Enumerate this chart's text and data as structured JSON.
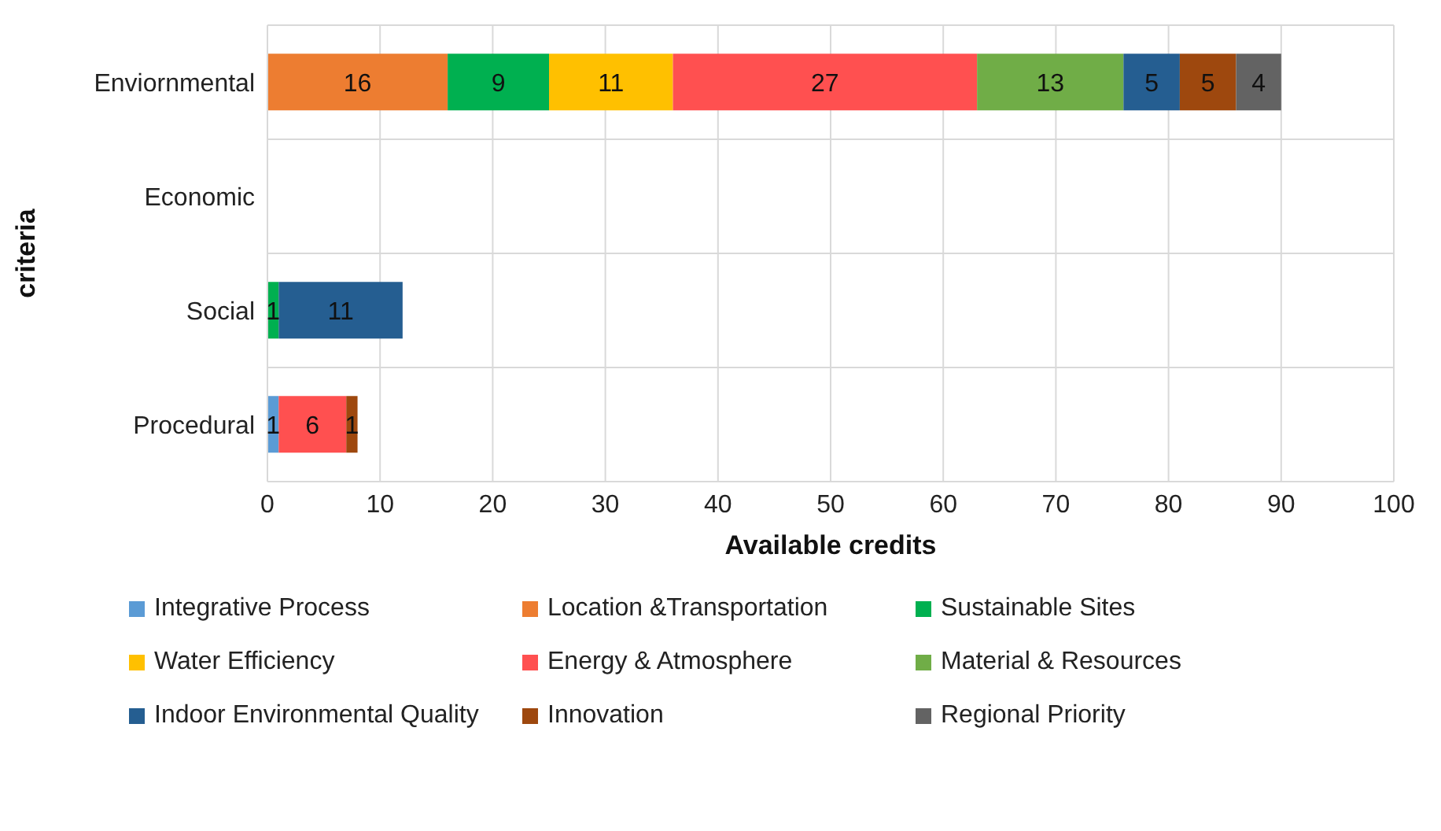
{
  "chart_data": {
    "type": "bar",
    "orientation": "horizontal",
    "stacked": true,
    "xlabel": "Available credits",
    "ylabel": "criteria",
    "categories": [
      "Enviornmental",
      "Economic",
      "Social",
      "Procedural"
    ],
    "series": [
      {
        "name": "Integrative Process",
        "color": "#5b9bd5",
        "values": [
          null,
          null,
          null,
          1
        ]
      },
      {
        "name": "Location &Transportation",
        "color": "#ed7d31",
        "values": [
          16,
          null,
          null,
          null
        ]
      },
      {
        "name": "Sustainable Sites",
        "color": "#00b050",
        "values": [
          9,
          null,
          1,
          null
        ]
      },
      {
        "name": "Water Efficiency",
        "color": "#ffc000",
        "values": [
          11,
          null,
          null,
          null
        ]
      },
      {
        "name": "Energy & Atmosphere",
        "color": "#ff5050",
        "values": [
          27,
          null,
          null,
          6
        ]
      },
      {
        "name": "Material & Resources",
        "color": "#70ad47",
        "values": [
          13,
          null,
          null,
          null
        ]
      },
      {
        "name": "Indoor Environmental Quality",
        "color": "#255e91",
        "values": [
          5,
          null,
          11,
          null
        ]
      },
      {
        "name": "Innovation",
        "color": "#9e480e",
        "values": [
          5,
          null,
          null,
          1
        ]
      },
      {
        "name": "Regional Priority",
        "color": "#636363",
        "values": [
          4,
          null,
          null,
          null
        ]
      }
    ],
    "xlim": [
      0,
      100
    ],
    "xticks": [
      0,
      10,
      20,
      30,
      40,
      50,
      60,
      70,
      80,
      90,
      100
    ],
    "grid": true,
    "legend": "bottom",
    "data_labels": true
  }
}
